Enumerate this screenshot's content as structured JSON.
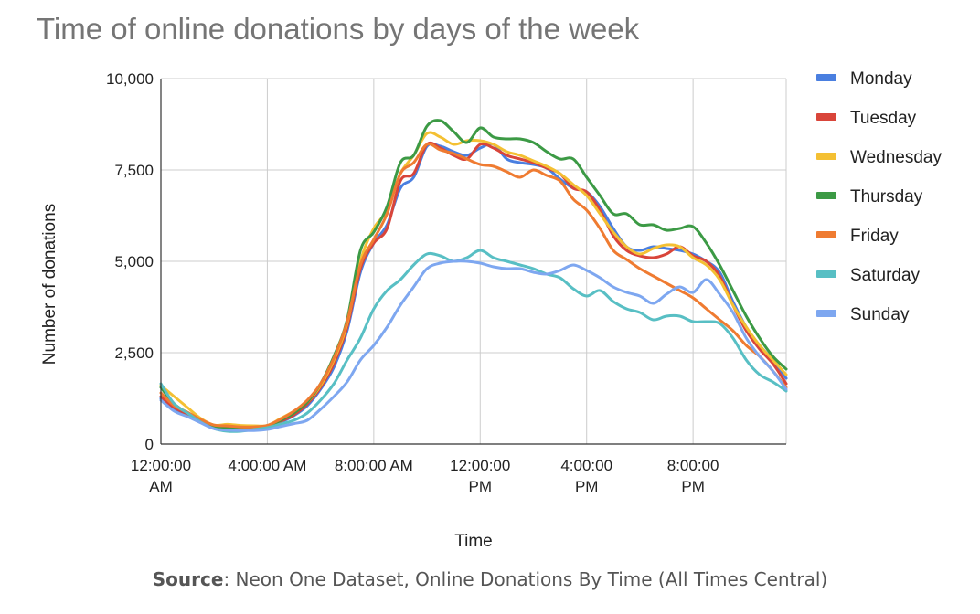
{
  "chart_data": {
    "type": "line",
    "title": "Time of online donations by days of the week",
    "xlabel": "Time",
    "ylabel": "Number of donations",
    "x_hours": [
      0,
      0.5,
      1,
      1.5,
      2,
      2.5,
      3,
      3.5,
      4,
      4.5,
      5,
      5.5,
      6,
      6.5,
      7,
      7.5,
      8,
      8.5,
      9,
      9.5,
      10,
      10.5,
      11,
      11.5,
      12,
      12.5,
      13,
      13.5,
      14,
      14.5,
      15,
      15.5,
      16,
      16.5,
      17,
      17.5,
      18,
      18.5,
      19,
      19.5,
      20,
      20.5,
      21,
      21.5,
      22,
      22.5,
      23,
      23.5
    ],
    "x_ticks": [
      {
        "hour": 0,
        "label": [
          "12:00:00",
          "AM"
        ]
      },
      {
        "hour": 4,
        "label": [
          "4:00:00 AM"
        ]
      },
      {
        "hour": 8,
        "label": [
          "8:00:00 AM"
        ]
      },
      {
        "hour": 12,
        "label": [
          "12:00:00",
          "PM"
        ]
      },
      {
        "hour": 16,
        "label": [
          "4:00:00",
          "PM"
        ]
      },
      {
        "hour": 20,
        "label": [
          "8:00:00",
          "PM"
        ]
      }
    ],
    "ylim": [
      0,
      10000
    ],
    "y_ticks": [
      {
        "value": 0,
        "label": "0"
      },
      {
        "value": 2500,
        "label": "2,500"
      },
      {
        "value": 5000,
        "label": "5,000"
      },
      {
        "value": 7500,
        "label": "7,500"
      },
      {
        "value": 10000,
        "label": "10,000"
      }
    ],
    "grid": true,
    "legend_position": "right",
    "series": [
      {
        "name": "Monday",
        "color": "#4a7fe0",
        "values": [
          1250,
          950,
          800,
          620,
          480,
          450,
          430,
          460,
          470,
          600,
          780,
          1050,
          1500,
          2100,
          3100,
          4700,
          5500,
          6000,
          7000,
          7300,
          8150,
          8150,
          8000,
          7900,
          8100,
          8200,
          7800,
          7700,
          7650,
          7550,
          7250,
          7000,
          6900,
          6500,
          5900,
          5400,
          5300,
          5400,
          5350,
          5300,
          5200,
          5000,
          4700,
          3900,
          3200,
          2700,
          2300,
          1800
        ]
      },
      {
        "name": "Tuesday",
        "color": "#d9453a",
        "values": [
          1300,
          1000,
          820,
          640,
          500,
          460,
          440,
          470,
          490,
          620,
          800,
          1100,
          1550,
          2200,
          3200,
          4800,
          5500,
          5900,
          7200,
          7400,
          8200,
          8100,
          7900,
          7800,
          8200,
          8100,
          7900,
          7800,
          7700,
          7550,
          7400,
          7000,
          6900,
          6400,
          5700,
          5300,
          5150,
          5100,
          5200,
          5400,
          5150,
          5000,
          4600,
          3800,
          3100,
          2600,
          2200,
          1650
        ]
      },
      {
        "name": "Wednesday",
        "color": "#f4c033",
        "values": [
          1600,
          1300,
          1000,
          700,
          520,
          540,
          510,
          500,
          510,
          700,
          900,
          1150,
          1600,
          2300,
          3300,
          5000,
          5900,
          6400,
          7400,
          7900,
          8500,
          8400,
          8200,
          8300,
          8300,
          8200,
          8000,
          7900,
          7750,
          7600,
          7400,
          7100,
          6800,
          6300,
          5800,
          5400,
          5200,
          5350,
          5450,
          5400,
          5100,
          4900,
          4500,
          3800,
          3200,
          2700,
          2300,
          1900
        ]
      },
      {
        "name": "Thursday",
        "color": "#3c9a45",
        "values": [
          1550,
          1100,
          850,
          630,
          470,
          420,
          420,
          460,
          490,
          650,
          850,
          1150,
          1650,
          2400,
          3400,
          5300,
          5800,
          6500,
          7700,
          7900,
          8700,
          8850,
          8550,
          8250,
          8650,
          8400,
          8350,
          8350,
          8250,
          8000,
          7800,
          7800,
          7300,
          6800,
          6300,
          6300,
          6000,
          6000,
          5850,
          5900,
          5950,
          5500,
          4900,
          4200,
          3500,
          2900,
          2400,
          2050
        ]
      },
      {
        "name": "Friday",
        "color": "#ef7b31",
        "values": [
          1400,
          1050,
          870,
          670,
          520,
          500,
          470,
          470,
          510,
          680,
          900,
          1200,
          1650,
          2350,
          3350,
          4900,
          5600,
          6300,
          7400,
          7700,
          8200,
          8050,
          7950,
          7800,
          7650,
          7600,
          7450,
          7300,
          7500,
          7350,
          7200,
          6700,
          6400,
          5900,
          5300,
          5050,
          4800,
          4600,
          4400,
          4200,
          4000,
          3700,
          3400,
          3100,
          2700,
          2400,
          2000,
          1550
        ]
      },
      {
        "name": "Saturday",
        "color": "#58bfc4",
        "values": [
          1650,
          1100,
          850,
          600,
          420,
          350,
          350,
          400,
          450,
          550,
          650,
          850,
          1200,
          1650,
          2300,
          2900,
          3700,
          4200,
          4500,
          4900,
          5200,
          5150,
          5000,
          5100,
          5300,
          5100,
          5000,
          4900,
          4800,
          4650,
          4550,
          4250,
          4050,
          4200,
          3900,
          3700,
          3600,
          3400,
          3500,
          3500,
          3350,
          3350,
          3300,
          2900,
          2300,
          1900,
          1700,
          1450
        ]
      },
      {
        "name": "Sunday",
        "color": "#7ea7f0",
        "values": [
          1200,
          900,
          750,
          580,
          420,
          380,
          370,
          370,
          400,
          480,
          560,
          650,
          950,
          1300,
          1700,
          2300,
          2700,
          3200,
          3800,
          4300,
          4800,
          4950,
          5000,
          5000,
          4950,
          4850,
          4800,
          4800,
          4700,
          4650,
          4750,
          4900,
          4750,
          4550,
          4300,
          4150,
          4050,
          3850,
          4100,
          4300,
          4150,
          4500,
          4100,
          3600,
          2900,
          2400,
          2000,
          1500
        ]
      }
    ]
  },
  "source": {
    "label": "Source",
    "text": ": Neon One Dataset, Online Donations By Time (All Times Central)"
  }
}
